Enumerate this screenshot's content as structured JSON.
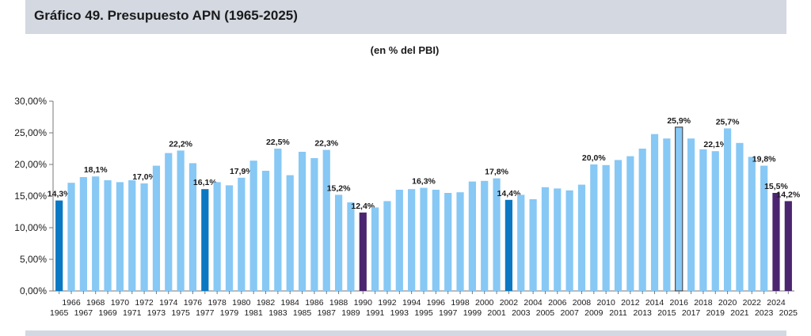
{
  "header": {
    "title": "Gráfico 49. Presupuesto APN (1965-2025)"
  },
  "colors": {
    "default": "#87c8f5",
    "highlight_blue": "#0a78c2",
    "highlight_purple": "#4b2570",
    "frame_bar_stroke": "#333333",
    "axis": "#777777",
    "grid": "#dddddd",
    "header_band": "#d3d8e1"
  },
  "chart_data": {
    "type": "bar",
    "title": "",
    "subtitle": "(en % del PBI)",
    "xlabel": "",
    "ylabel": "",
    "ylim": [
      0,
      30
    ],
    "y_ticks": [
      "0,00%",
      "5,00%",
      "10,00%",
      "15,00%",
      "20,00%",
      "25,00%",
      "30,00%"
    ],
    "grid": false,
    "legend": "none",
    "categories": [
      1965,
      1966,
      1967,
      1968,
      1969,
      1970,
      1971,
      1972,
      1973,
      1974,
      1975,
      1976,
      1977,
      1978,
      1979,
      1980,
      1981,
      1982,
      1983,
      1984,
      1985,
      1986,
      1987,
      1988,
      1989,
      1990,
      1991,
      1992,
      1993,
      1994,
      1995,
      1996,
      1997,
      1998,
      1999,
      2000,
      2001,
      2002,
      2003,
      2004,
      2005,
      2006,
      2007,
      2008,
      2009,
      2010,
      2011,
      2012,
      2013,
      2014,
      2015,
      2016,
      2017,
      2018,
      2019,
      2020,
      2021,
      2022,
      2023,
      2024,
      2025
    ],
    "values": [
      14.3,
      17.1,
      18.0,
      18.1,
      17.5,
      17.2,
      17.5,
      17.0,
      19.8,
      21.8,
      22.2,
      20.2,
      16.1,
      17.2,
      16.7,
      17.9,
      20.6,
      19.0,
      22.5,
      18.3,
      22.0,
      21.0,
      22.3,
      15.2,
      14.0,
      12.4,
      13.2,
      14.2,
      16.0,
      16.1,
      16.3,
      16.0,
      15.5,
      15.6,
      17.3,
      17.4,
      17.8,
      14.4,
      15.2,
      14.5,
      16.4,
      16.2,
      15.9,
      16.8,
      20.0,
      19.9,
      20.7,
      21.3,
      22.5,
      24.8,
      24.1,
      25.9,
      24.1,
      22.4,
      22.1,
      25.7,
      23.4,
      21.2,
      19.8,
      15.5,
      14.2
    ],
    "bar_styles": {
      "1965": "highlight_blue",
      "1977": "highlight_blue",
      "2002": "highlight_blue",
      "1990": "highlight_purple",
      "2024": "highlight_purple",
      "2025": "highlight_purple",
      "2016": "framed"
    },
    "data_labels": {
      "1965": "14,3%",
      "1968": "18,1%",
      "1972": "17,0%",
      "1975": "22,2%",
      "1977": "16,1%",
      "1980": "17,9%",
      "1983": "22,5%",
      "1987": "22,3%",
      "1988": "15,2%",
      "1990": "12,4%",
      "1995": "16,3%",
      "2001": "17,8%",
      "2002": "14,4%",
      "2009": "20,0%",
      "2016": "25,9%",
      "2019": "22,1%",
      "2020": "25,7%",
      "2023": "19,8%",
      "2024": "15,5%",
      "2025": "14,2%"
    }
  }
}
